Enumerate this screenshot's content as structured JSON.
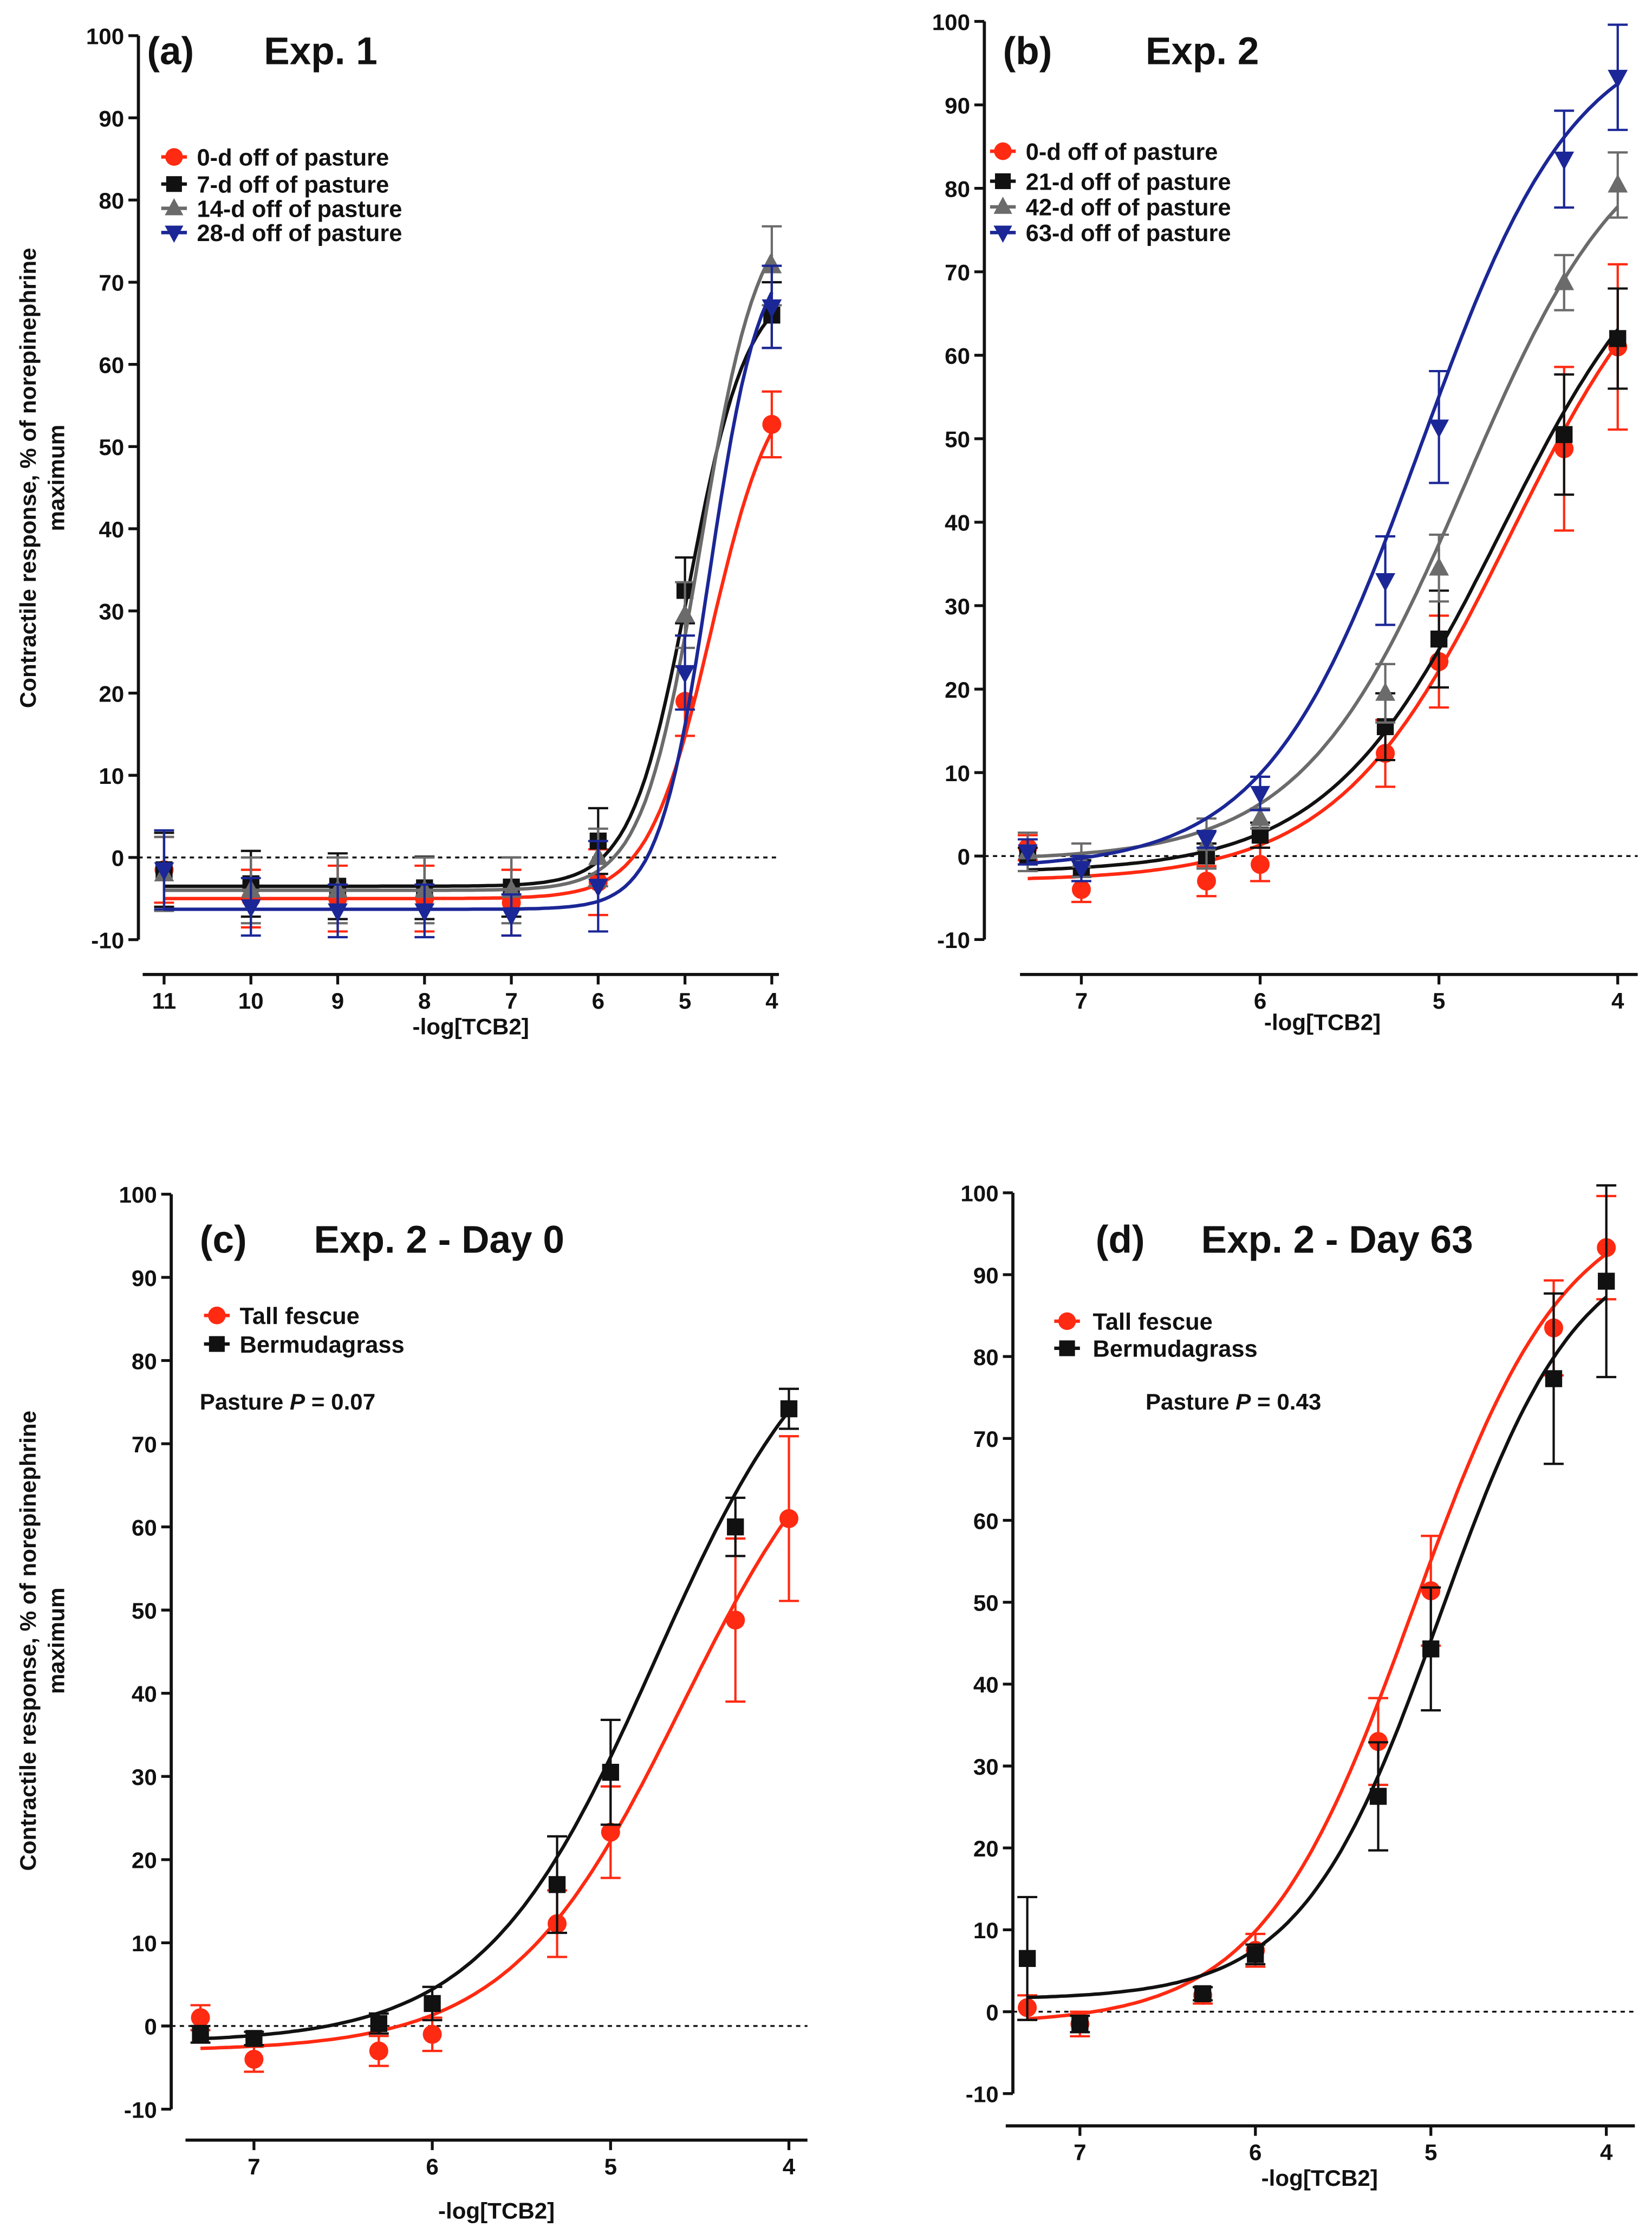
{
  "colors": {
    "red": "#ff2a12",
    "black": "#111111",
    "gray": "#6b6b6b",
    "blue": "#1b2796"
  },
  "chart_data": [
    {
      "type": "scatter",
      "panel_label": "(a)",
      "title": "Exp. 1",
      "xlabel": "-log[TCB2]",
      "ylabel": [
        "Contractile response, % of norepinephrine",
        "maximum"
      ],
      "xlim": [
        11,
        4
      ],
      "ylim": [
        -10,
        100
      ],
      "xticks": [
        11,
        10,
        9,
        8,
        7,
        6,
        5,
        4
      ],
      "yticks": [
        -10,
        0,
        10,
        20,
        30,
        40,
        50,
        60,
        70,
        80,
        90,
        100
      ],
      "legend_position": "top-left",
      "x": [
        11,
        10,
        9,
        8,
        7,
        6,
        5,
        4
      ],
      "series": [
        {
          "name": "0-d off of pasture",
          "color": "red",
          "marker": "circle",
          "values": [
            -1.5,
            -5,
            -5,
            -5,
            -5.5,
            -3,
            19,
            52.7
          ],
          "errors": [
            4,
            3.5,
            4,
            4,
            4,
            4,
            4.2,
            4
          ],
          "fit": {
            "bottom": -5,
            "top": 60,
            "pec50": 4.7,
            "hill": 1.2
          }
        },
        {
          "name": "7-d off of pasture",
          "color": "black",
          "marker": "square",
          "values": [
            -1.5,
            -3.2,
            -3.5,
            -3.7,
            -3.6,
            2,
            32.5,
            66
          ],
          "errors": [
            4.5,
            4,
            4,
            3.8,
            3.6,
            4,
            4,
            4
          ],
          "fit": {
            "bottom": -3.5,
            "top": 70,
            "pec50": 4.95,
            "hill": 1.3
          }
        },
        {
          "name": "14-d off of pasture",
          "color": "gray",
          "marker": "triangle-up",
          "values": [
            -2,
            -4,
            -4,
            -4,
            -4,
            0,
            29.5,
            72
          ],
          "errors": [
            4.5,
            4,
            4,
            4,
            4,
            3.5,
            4,
            4.8
          ],
          "fit": {
            "bottom": -4,
            "top": 80,
            "pec50": 4.82,
            "hill": 1.3
          }
        },
        {
          "name": "28-d off of pasture",
          "color": "blue",
          "marker": "triangle-down",
          "values": [
            -1.5,
            -6,
            -6.5,
            -6.5,
            -7,
            -3.5,
            22.5,
            67
          ],
          "errors": [
            4.8,
            3.5,
            3.2,
            3.2,
            2.5,
            5.5,
            4.5,
            5
          ],
          "fit": {
            "bottom": -6.3,
            "top": 75,
            "pec50": 4.72,
            "hill": 1.5
          }
        }
      ]
    },
    {
      "type": "scatter",
      "panel_label": "(b)",
      "title": "Exp. 2",
      "xlabel": "-log[TCB2]",
      "xlim": [
        7.3,
        4
      ],
      "ylim": [
        -10,
        100
      ],
      "xticks": [
        7,
        6,
        5,
        4
      ],
      "yticks": [
        -10,
        0,
        10,
        20,
        30,
        40,
        50,
        60,
        70,
        80,
        90,
        100
      ],
      "legend_position": "top-left",
      "x": [
        7.3,
        7,
        6.3,
        6,
        5.3,
        5,
        4.3,
        4
      ],
      "series": [
        {
          "name": "0-d off of pasture",
          "color": "red",
          "marker": "circle",
          "values": [
            1,
            -4,
            -3,
            -1,
            12.3,
            23.3,
            48.8,
            61
          ],
          "errors": [
            1.5,
            1.5,
            1.8,
            2,
            4,
            5.5,
            9.8,
            9.9
          ],
          "fit": {
            "bottom": -3,
            "top": 80,
            "pec50": 4.6,
            "hill": 0.9
          }
        },
        {
          "name": "21-d off of pasture",
          "color": "black",
          "marker": "square",
          "values": [
            0,
            -1.5,
            0,
            2.5,
            15.5,
            26,
            50.5,
            62
          ],
          "errors": [
            1,
            1,
            1.5,
            1.5,
            4,
            5.8,
            7.2,
            6
          ],
          "fit": {
            "bottom": -2,
            "top": 80,
            "pec50": 4.65,
            "hill": 0.9
          }
        },
        {
          "name": "42-d off of pasture",
          "color": "gray",
          "marker": "triangle-up",
          "values": [
            0.5,
            -0.5,
            1.5,
            4.5,
            19.5,
            34.5,
            68.7,
            80.4
          ],
          "errors": [
            2.3,
            2,
            3,
            1.2,
            3.5,
            4,
            3.3,
            3.9
          ],
          "fit": {
            "bottom": -0.5,
            "top": 90,
            "pec50": 4.85,
            "hill": 0.95
          }
        },
        {
          "name": "63-d off of pasture",
          "color": "blue",
          "marker": "triangle-down",
          "values": [
            0.5,
            -1.5,
            2,
            7.5,
            33,
            51.4,
            83.5,
            93.3
          ],
          "errors": [
            1.5,
            1.5,
            1,
            2,
            5.3,
            6.7,
            5.8,
            6.3
          ],
          "fit": {
            "bottom": -1.5,
            "top": 100,
            "pec50": 5.1,
            "hill": 1.0
          }
        }
      ]
    },
    {
      "type": "scatter",
      "panel_label": "(c)",
      "title": "Exp. 2 - Day 0",
      "xlabel": "-log[TCB2]",
      "ylabel": [
        "Contractile response, % of norepinephrine",
        "maximum"
      ],
      "annotation": {
        "prefix": "Pasture ",
        "italic": "P",
        "suffix": " = 0.07"
      },
      "xlim": [
        7.3,
        4
      ],
      "ylim": [
        -10,
        100
      ],
      "xticks": [
        7,
        6,
        5,
        4
      ],
      "yticks": [
        -10,
        0,
        10,
        20,
        30,
        40,
        50,
        60,
        70,
        80,
        90,
        100
      ],
      "legend_position": "top-left",
      "x": [
        7.3,
        7,
        6.3,
        6,
        5.3,
        5,
        4.3,
        4
      ],
      "series": [
        {
          "name": "Tall fescue",
          "color": "red",
          "marker": "circle",
          "values": [
            1,
            -4,
            -3,
            -1,
            12.3,
            23.3,
            48.8,
            61
          ],
          "errors": [
            1.5,
            1.5,
            1.8,
            2,
            4,
            5.5,
            9.8,
            9.9
          ],
          "fit": {
            "bottom": -3,
            "top": 80,
            "pec50": 4.6,
            "hill": 0.9
          }
        },
        {
          "name": "Bermudagrass",
          "color": "black",
          "marker": "square",
          "values": [
            -1,
            -1.5,
            0.3,
            2.7,
            17,
            30.5,
            60,
            74.2
          ],
          "errors": [
            1,
            0.8,
            1.2,
            2,
            5.8,
            6.3,
            3.5,
            2.4
          ],
          "fit": {
            "bottom": -2,
            "top": 90,
            "pec50": 4.75,
            "hill": 0.9
          }
        }
      ]
    },
    {
      "type": "scatter",
      "panel_label": "(d)",
      "title": "Exp. 2 - Day 63",
      "xlabel": "-log[TCB2]",
      "annotation": {
        "prefix": "Pasture ",
        "italic": "P",
        "suffix": " = 0.43"
      },
      "xlim": [
        7.3,
        4
      ],
      "ylim": [
        -10,
        100
      ],
      "xticks": [
        7,
        6,
        5,
        4
      ],
      "yticks": [
        -10,
        0,
        10,
        20,
        30,
        40,
        50,
        60,
        70,
        80,
        90,
        100
      ],
      "legend_position": "top-left",
      "x": [
        7.3,
        7,
        6.3,
        6,
        5.3,
        5,
        4.3,
        4
      ],
      "series": [
        {
          "name": "Tall fescue",
          "color": "red",
          "marker": "circle",
          "values": [
            0.5,
            -1.5,
            2,
            7.5,
            33,
            51.4,
            83.5,
            93.3
          ],
          "errors": [
            1.5,
            1.5,
            1,
            2,
            5.3,
            6.7,
            5.8,
            6.3
          ],
          "fit": {
            "bottom": -1.5,
            "top": 100,
            "pec50": 5.1,
            "hill": 1.0
          }
        },
        {
          "name": "Bermudagrass",
          "color": "black",
          "marker": "square",
          "values": [
            6.5,
            -1.5,
            2.2,
            7,
            26.3,
            44.3,
            77.3,
            89.2
          ],
          "errors": [
            7.5,
            1,
            0.8,
            1.2,
            6.6,
            7.5,
            10.4,
            11.7
          ],
          "fit": {
            "bottom": 1.5,
            "top": 95,
            "pec50": 4.95,
            "hill": 1.1
          }
        }
      ]
    }
  ]
}
